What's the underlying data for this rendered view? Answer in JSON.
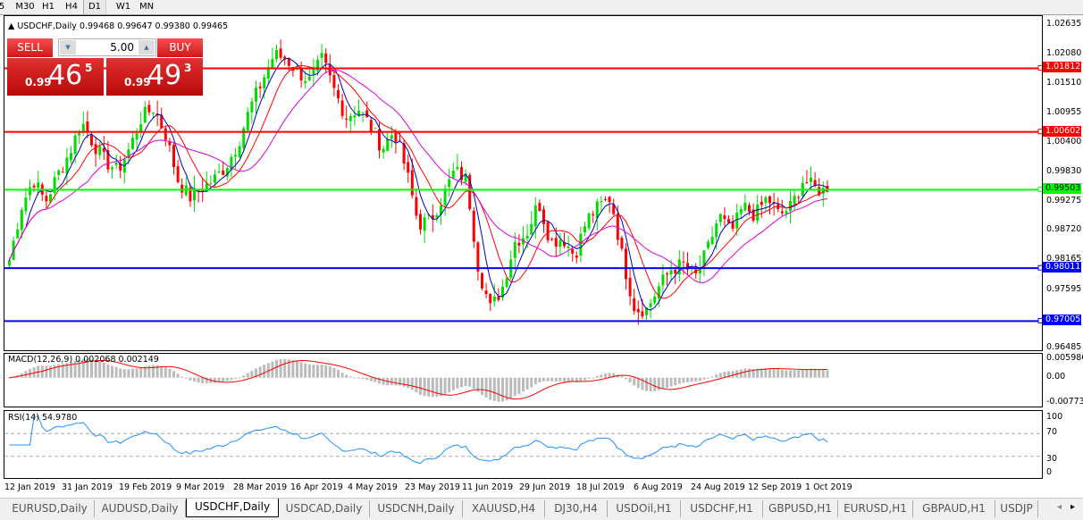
{
  "toolbar": {
    "timeframes": [
      {
        "label": "5"
      },
      {
        "label": "M30"
      },
      {
        "label": "H1"
      },
      {
        "label": "H4"
      },
      {
        "label": "D1",
        "active": true
      },
      {
        "label": "W1"
      },
      {
        "label": "MN"
      }
    ]
  },
  "chart": {
    "symbol_line": "USDCHF,Daily  0.99468 0.99647 0.99380 0.99465",
    "price_axis": {
      "max": 1.02635,
      "min": 0.96485,
      "ticks": [
        "1.02635",
        "1.02080",
        "1.01510",
        "1.00955",
        "1.00400",
        "0.99830",
        "0.99275",
        "0.98720",
        "0.98165",
        "0.97595",
        "0.96485"
      ]
    },
    "levels": [
      {
        "price": 1.01812,
        "label": "1.01812",
        "color": "#ff0000"
      },
      {
        "price": 1.00602,
        "label": "1.00602",
        "color": "#ff0000"
      },
      {
        "price": 0.99503,
        "label": "0.99503",
        "color": "#00ff00"
      },
      {
        "price": 0.98011,
        "label": "0.98011",
        "color": "#0000ff"
      },
      {
        "price": 0.97005,
        "label": "0.97005",
        "color": "#0000ff"
      }
    ],
    "close_path": [
      0.98167,
      0.99186,
      0.99696,
      0.99271,
      0.99781,
      1.00206,
      1.008,
      1.00375,
      1.00036,
      0.99866,
      1.00291,
      1.00885,
      1.01055,
      1.00545,
      0.99696,
      0.99356,
      0.99526,
      0.99696,
      0.99951,
      1.00375,
      1.01055,
      1.01565,
      1.02074,
      1.01989,
      1.01735,
      1.01565,
      1.01989,
      1.01395,
      1.00885,
      1.01055,
      1.00715,
      1.00291,
      1.0063,
      0.99866,
      0.98846,
      0.98931,
      0.99356,
      0.99866,
      0.99696,
      0.97997,
      0.97232,
      0.97657,
      0.98507,
      0.98677,
      0.99271,
      0.98507,
      0.98592,
      0.98252,
      0.98931,
      0.99186,
      0.99356,
      0.98167,
      0.97232,
      0.97232,
      0.97657,
      0.97997,
      0.98082,
      0.97827,
      0.98337,
      0.99016,
      0.98677,
      0.99186,
      0.99016,
      0.99356,
      0.99016,
      0.99186,
      0.99696,
      0.99526,
      0.99465
    ],
    "colors": {
      "bull": "#00dd00",
      "bear": "#ff0000",
      "ma_fast": "#0000c0",
      "ma_mid": "#ff0000",
      "ma_slow": "#dd00dd"
    }
  },
  "trade_panel": {
    "sell_label": "SELL",
    "buy_label": "BUY",
    "volume": "5.00",
    "sell": {
      "prefix": "0.99",
      "big": "46",
      "sup": "5"
    },
    "buy": {
      "prefix": "0.99",
      "big": "49",
      "sup": "3"
    }
  },
  "macd": {
    "label": "MACD(12,26,9) 0.002068 0.002149",
    "ticks": [
      "0.005986",
      "0.00",
      "-0.007737"
    ]
  },
  "rsi": {
    "label": "RSI(14) 54.9780",
    "ticks": [
      "100",
      "70",
      "30",
      "0"
    ],
    "color": "#1e90ff"
  },
  "dates": [
    "12 Jan 2019",
    "31 Jan 2019",
    "19 Feb 2019",
    "9 Mar 2019",
    "28 Mar 2019",
    "16 Apr 2019",
    "4 May 2019",
    "23 May 2019",
    "11 Jun 2019",
    "29 Jun 2019",
    "18 Jul 2019",
    "6 Aug 2019",
    "24 Aug 2019",
    "12 Sep 2019",
    "1 Oct 2019"
  ],
  "tabs": [
    {
      "label": "EURUSD,Daily"
    },
    {
      "label": "AUDUSD,Daily"
    },
    {
      "label": "USDCHF,Daily",
      "active": true
    },
    {
      "label": "USDCAD,Daily"
    },
    {
      "label": "USDCNH,Daily"
    },
    {
      "label": "XAUUSD,H4"
    },
    {
      "label": "DJ30,H4"
    },
    {
      "label": "USDOil,H1"
    },
    {
      "label": "USDCHF,H1"
    },
    {
      "label": "GBPUSD,H1"
    },
    {
      "label": "EURUSD,H1"
    },
    {
      "label": "GBPAUD,H1"
    },
    {
      "label": "USDJP"
    }
  ]
}
